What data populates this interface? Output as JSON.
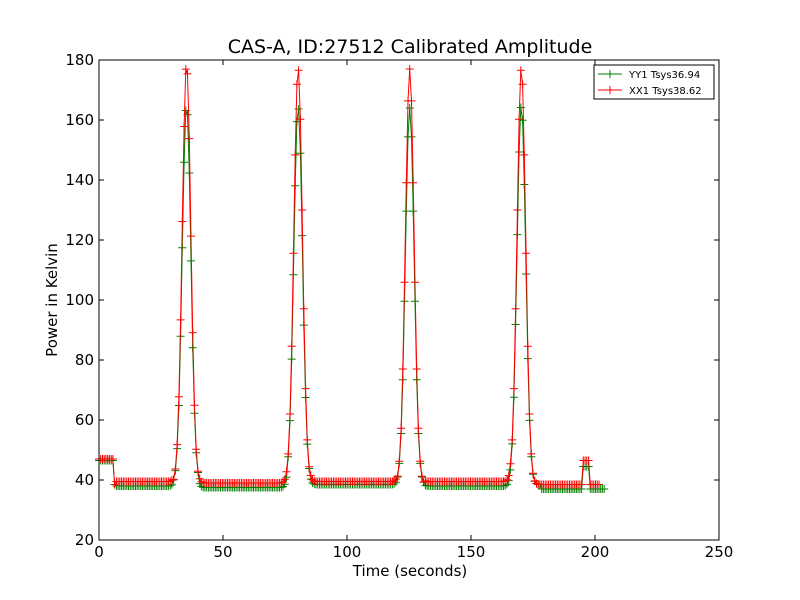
{
  "chart_data": {
    "type": "line",
    "title": "CAS-A, ID:27512 Calibrated Amplitude",
    "xlabel": "Time (seconds)",
    "ylabel": "Power in Kelvin",
    "xlim": [
      0,
      250
    ],
    "ylim": [
      20,
      180
    ],
    "x_ticks": [
      "0",
      "50",
      "100",
      "150",
      "200",
      "250"
    ],
    "y_ticks": [
      "20",
      "40",
      "60",
      "80",
      "100",
      "120",
      "140",
      "160",
      "180"
    ],
    "grid": false,
    "legend_position": "top-right",
    "marker": "plus",
    "series": [
      {
        "name": "YY1 Tsys36.94",
        "color": "#008000",
        "baseline_segments": [
          [
            0,
            6,
            46.5
          ],
          [
            6.5,
            30,
            38
          ],
          [
            40,
            76,
            37.5
          ],
          [
            85,
            120,
            38.5
          ],
          [
            131,
            166,
            38
          ],
          [
            178,
            204,
            37
          ]
        ],
        "peaks": [
          {
            "x": 35.3,
            "y": 165
          },
          {
            "x": 80.3,
            "y": 164.5
          },
          {
            "x": 125.3,
            "y": 164
          },
          {
            "x": 170.3,
            "y": 165
          }
        ],
        "bumps": [
          {
            "x": 196.5,
            "y": 45.5
          }
        ]
      },
      {
        "name": "XX1 Tsys38.62",
        "color": "#ff0000",
        "baseline_segments": [
          [
            0,
            6,
            47
          ],
          [
            6.5,
            30,
            39.5
          ],
          [
            40,
            76,
            39
          ],
          [
            85,
            120,
            39.5
          ],
          [
            131,
            166,
            39.5
          ],
          [
            178,
            202,
            38.5
          ]
        ],
        "peaks": [
          {
            "x": 35.3,
            "y": 179
          },
          {
            "x": 80.3,
            "y": 177.5
          },
          {
            "x": 125.3,
            "y": 177
          },
          {
            "x": 170.3,
            "y": 177.5
          }
        ],
        "bumps": [
          {
            "x": 196.5,
            "y": 46
          }
        ]
      }
    ]
  }
}
